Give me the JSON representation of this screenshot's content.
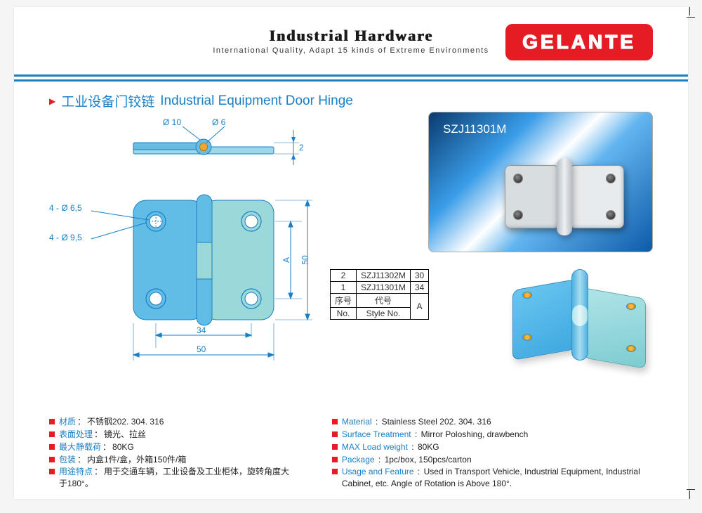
{
  "header": {
    "title": "Industrial Hardware",
    "subtitle": "International Quality, Adapt 15 kinds of Extreme Environments",
    "brand": "GELANTE"
  },
  "section": {
    "title_cn": "工业设备门铰链",
    "title_en": "Industrial Equipment Door Hinge"
  },
  "product_photo": {
    "model": "SZJ11301M"
  },
  "drawing": {
    "dims": {
      "d10": "Ø 10",
      "d6": "Ø 6",
      "t2": "2",
      "h65": "4 - Ø 6,5",
      "h95": "4 - Ø 9,5",
      "w34": "34",
      "w50": "50",
      "h50": "50",
      "hA": "A"
    }
  },
  "variant_table": {
    "rows": [
      [
        "2",
        "SZJ11302M",
        "30"
      ],
      [
        "1",
        "SZJ11301M",
        "34"
      ]
    ],
    "header_cn": [
      "序号",
      "代号",
      "A"
    ],
    "header_en": [
      "No.",
      "Style No.",
      ""
    ]
  },
  "specs_cn": [
    {
      "label": "材质",
      "value": "不锈钢202. 304. 316"
    },
    {
      "label": "表面处理",
      "value": "镜光、拉丝"
    },
    {
      "label": "最大静载荷",
      "value": "80KG"
    },
    {
      "label": "包装",
      "value": "内盒1件/盒，外箱150件/箱"
    },
    {
      "label": "用途特点",
      "value": "用于交通车辆，工业设备及工业柜体，旋转角度大于180°。"
    }
  ],
  "specs_en": [
    {
      "label": "Material",
      "value": "Stainless Steel 202. 304. 316"
    },
    {
      "label": "Surface Treatment",
      "value": "Mirror Poloshing, drawbench"
    },
    {
      "label": "MAX Load weight",
      "value": "80KG"
    },
    {
      "label": "Package",
      "value": "1pc/box,  150pcs/carton"
    },
    {
      "label": "Usage and Feature",
      "value": "Used in Transport Vehicle, Industrial Equipment, Industrial Cabinet, etc. Angle of Rotation is Above 180°."
    }
  ],
  "colors": {
    "accent_blue": "#1a7fc4",
    "accent_red": "#e51c23",
    "leaf1": "#5bb8e8",
    "leaf2": "#8fd4d6"
  }
}
